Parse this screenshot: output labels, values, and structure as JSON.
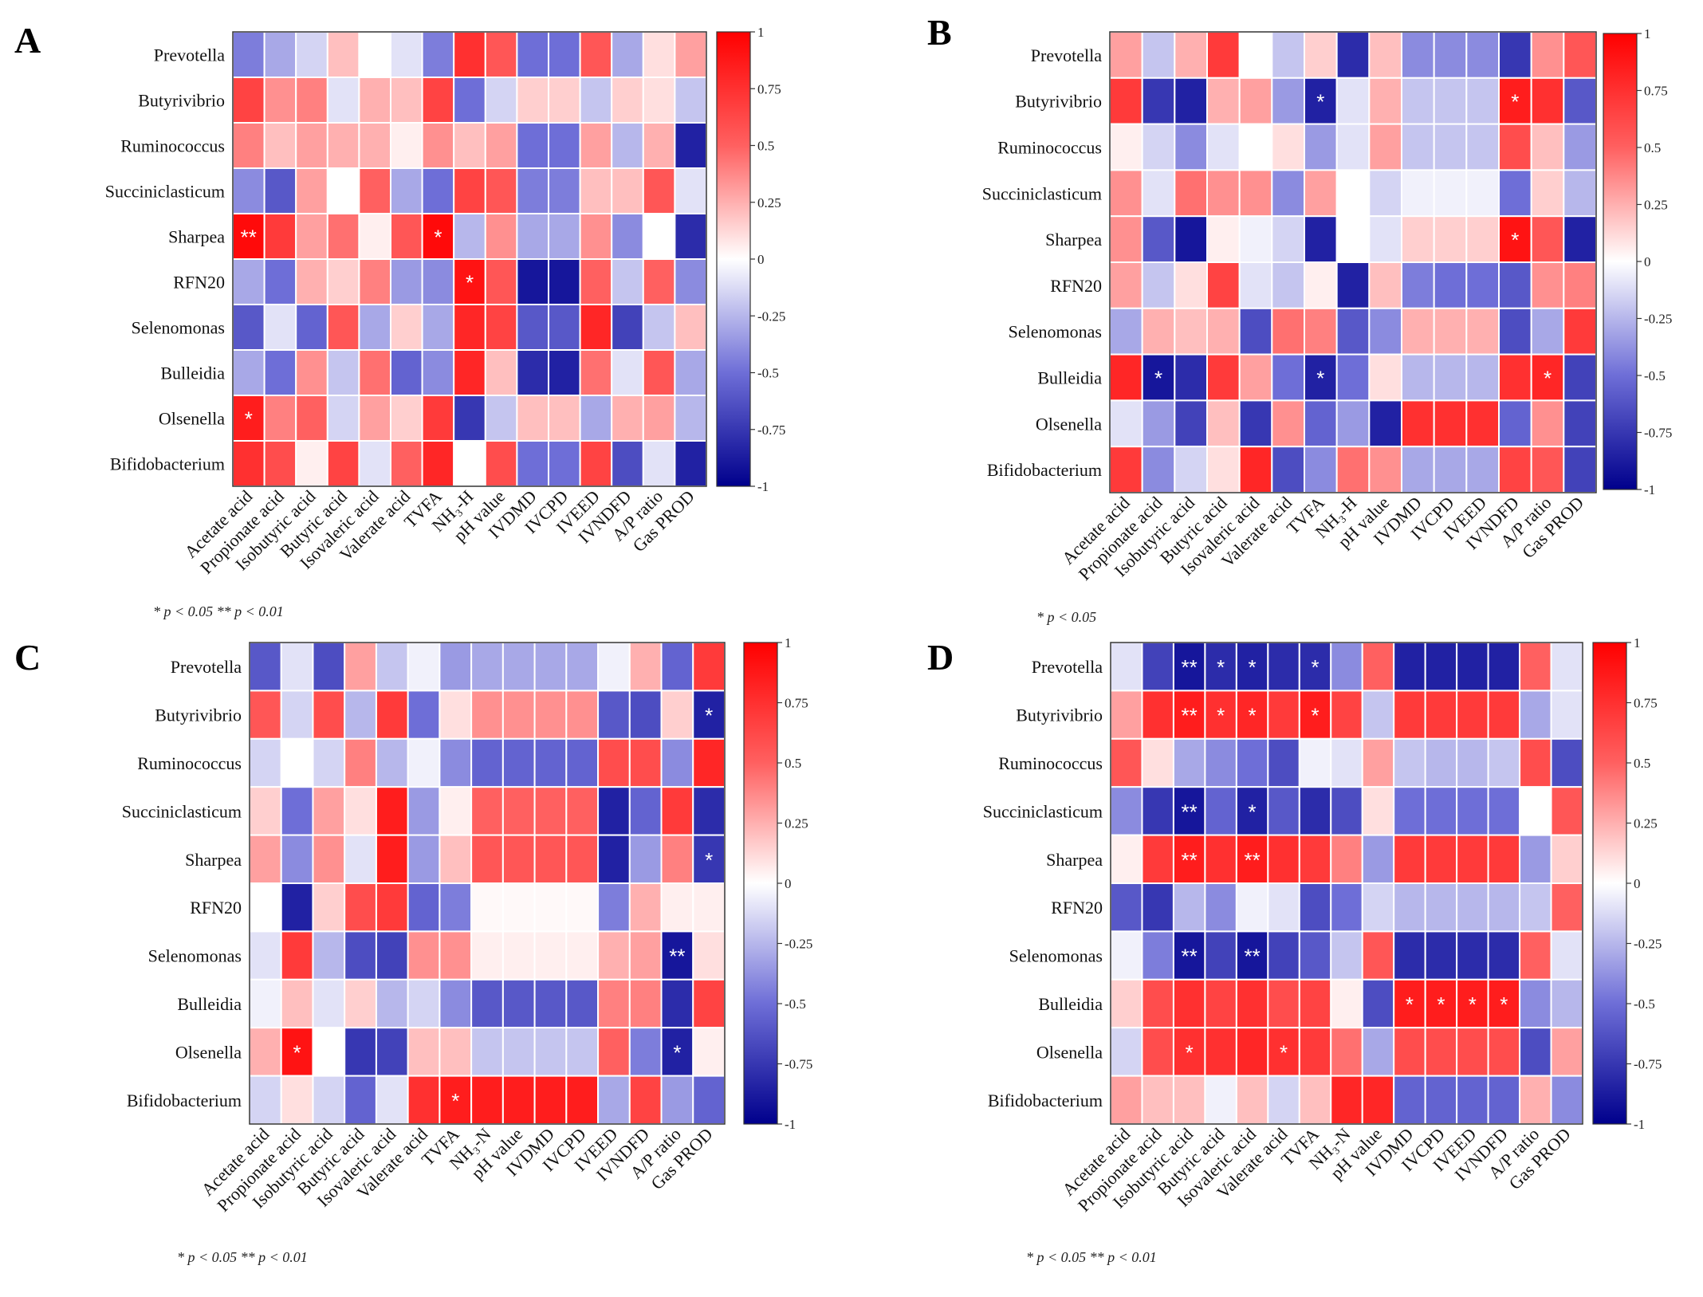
{
  "figure": {
    "genera": [
      "Prevotella",
      "Butyrivibrio",
      "Ruminococcus",
      "Succiniclasticum",
      "Sharpea",
      "RFN20",
      "Selenomonas",
      "Bulleidia",
      "Olsenella",
      "Bifidobacterium"
    ],
    "colorbar": {
      "ticks": [
        "1",
        "0.75",
        "0.5",
        "0.25",
        "0",
        "-0.25",
        "-0.5",
        "-0.75",
        "-1"
      ],
      "scale_colors": [
        "#00008b",
        "#ffffff",
        "#ff0000"
      ]
    }
  },
  "chart_data": [
    {
      "panel": "A",
      "type": "heatmap",
      "columns": [
        "Acetate acid",
        "Propionate acid",
        "Isobutyric acid",
        "Butyric acid",
        "Isovaleric acid",
        "Valerate acid",
        "TVFA",
        "NH₃-H",
        "pH value",
        "IVDMD",
        "IVCPD",
        "IVEED",
        "IVNDFD",
        "A/P ratio",
        "Gas PROD"
      ],
      "values": [
        [
          -0.45,
          -0.3,
          -0.15,
          0.2,
          0.0,
          -0.1,
          -0.45,
          0.75,
          0.55,
          -0.5,
          -0.5,
          0.55,
          -0.3,
          0.1,
          0.3
        ],
        [
          0.65,
          0.35,
          0.4,
          -0.1,
          0.25,
          0.2,
          0.65,
          -0.5,
          -0.15,
          0.15,
          0.15,
          -0.2,
          0.15,
          0.1,
          -0.2
        ],
        [
          0.4,
          0.2,
          0.3,
          0.25,
          0.25,
          0.05,
          0.35,
          0.2,
          0.3,
          -0.5,
          -0.5,
          0.3,
          -0.25,
          0.25,
          -0.85
        ],
        [
          -0.4,
          -0.6,
          0.3,
          0.0,
          0.5,
          -0.3,
          -0.5,
          0.65,
          0.55,
          -0.45,
          -0.45,
          0.2,
          0.2,
          0.55,
          -0.1
        ],
        [
          0.95,
          0.7,
          0.3,
          0.45,
          0.05,
          0.55,
          0.95,
          -0.25,
          0.35,
          -0.3,
          -0.3,
          0.35,
          -0.4,
          0.0,
          -0.8
        ],
        [
          -0.3,
          -0.5,
          0.25,
          0.15,
          0.4,
          -0.35,
          -0.4,
          0.9,
          0.55,
          -0.9,
          -0.9,
          0.5,
          -0.2,
          0.5,
          -0.4
        ],
        [
          -0.6,
          -0.1,
          -0.55,
          0.55,
          -0.3,
          0.15,
          -0.3,
          0.8,
          0.65,
          -0.6,
          -0.6,
          0.8,
          -0.7,
          -0.2,
          0.2
        ],
        [
          -0.3,
          -0.5,
          0.35,
          -0.2,
          0.45,
          -0.55,
          -0.4,
          0.8,
          0.2,
          -0.8,
          -0.85,
          0.45,
          -0.1,
          0.55,
          -0.3
        ],
        [
          0.85,
          0.4,
          0.5,
          -0.15,
          0.3,
          0.15,
          0.7,
          -0.75,
          -0.2,
          0.2,
          0.2,
          -0.3,
          0.25,
          0.3,
          -0.25
        ],
        [
          0.75,
          0.6,
          0.05,
          0.65,
          -0.1,
          0.5,
          0.8,
          0.0,
          0.6,
          -0.5,
          -0.5,
          0.65,
          -0.65,
          -0.1,
          -0.85
        ]
      ],
      "significance": [
        {
          "row": 4,
          "col": 0,
          "mark": "**"
        },
        {
          "row": 4,
          "col": 6,
          "mark": "*"
        },
        {
          "row": 5,
          "col": 7,
          "mark": "*"
        },
        {
          "row": 8,
          "col": 0,
          "mark": "*"
        }
      ],
      "footnote": "* p < 0.05  ** p < 0.01",
      "colorbar": [
        -1,
        1
      ]
    },
    {
      "panel": "B",
      "type": "heatmap",
      "columns": [
        "Acetate acid",
        "Propionate acid",
        "Isobutyric acid",
        "Butyric acid",
        "Isovaleric acid",
        "Valerate acid",
        "TVFA",
        "NH₃-H",
        "pH value",
        "IVDMD",
        "IVCPD",
        "IVEED",
        "IVNDFD",
        "A/P ratio",
        "Gas PROD"
      ],
      "values": [
        [
          0.3,
          -0.2,
          0.25,
          0.7,
          0.0,
          -0.2,
          0.15,
          -0.8,
          0.2,
          -0.4,
          -0.4,
          -0.4,
          -0.75,
          0.35,
          0.55
        ],
        [
          0.7,
          -0.75,
          -0.85,
          0.25,
          0.3,
          -0.35,
          -0.85,
          -0.1,
          0.25,
          -0.2,
          -0.2,
          -0.2,
          0.85,
          0.75,
          -0.6
        ],
        [
          0.05,
          -0.15,
          -0.4,
          -0.1,
          0.0,
          0.1,
          -0.35,
          -0.1,
          0.3,
          -0.2,
          -0.2,
          -0.2,
          0.6,
          0.2,
          -0.35
        ],
        [
          0.35,
          -0.1,
          0.45,
          0.35,
          0.35,
          -0.4,
          0.3,
          0.0,
          -0.15,
          -0.05,
          -0.05,
          -0.05,
          -0.5,
          0.15,
          -0.25
        ],
        [
          0.35,
          -0.6,
          -0.9,
          0.05,
          -0.05,
          -0.15,
          -0.85,
          0.0,
          -0.1,
          0.15,
          0.15,
          0.15,
          0.9,
          0.55,
          -0.85
        ],
        [
          0.3,
          -0.2,
          0.1,
          0.65,
          -0.1,
          -0.2,
          0.05,
          -0.85,
          0.2,
          -0.45,
          -0.5,
          -0.5,
          -0.6,
          0.35,
          0.4
        ],
        [
          -0.3,
          0.25,
          0.2,
          0.25,
          -0.65,
          0.45,
          0.4,
          -0.6,
          -0.4,
          0.25,
          0.25,
          0.25,
          -0.65,
          -0.3,
          0.7
        ],
        [
          0.8,
          -0.9,
          -0.8,
          0.7,
          0.3,
          -0.5,
          -0.85,
          -0.5,
          0.1,
          -0.25,
          -0.25,
          -0.25,
          0.75,
          0.8,
          -0.7
        ],
        [
          -0.1,
          -0.35,
          -0.7,
          0.2,
          -0.75,
          0.35,
          -0.55,
          -0.35,
          -0.85,
          0.75,
          0.75,
          0.75,
          -0.55,
          0.35,
          -0.7
        ],
        [
          0.7,
          -0.4,
          -0.15,
          0.1,
          0.8,
          -0.65,
          -0.4,
          0.45,
          0.35,
          -0.3,
          -0.3,
          -0.3,
          0.65,
          0.55,
          -0.7
        ]
      ],
      "significance": [
        {
          "row": 1,
          "col": 6,
          "mark": "*"
        },
        {
          "row": 1,
          "col": 12,
          "mark": "*"
        },
        {
          "row": 4,
          "col": 12,
          "mark": "*"
        },
        {
          "row": 7,
          "col": 1,
          "mark": "*"
        },
        {
          "row": 7,
          "col": 6,
          "mark": "*"
        },
        {
          "row": 7,
          "col": 13,
          "mark": "*"
        }
      ],
      "footnote": "* p < 0.05",
      "colorbar": [
        -1,
        1
      ]
    },
    {
      "panel": "C",
      "type": "heatmap",
      "columns": [
        "Acetate acid",
        "Propionate acid",
        "Isobutyric acid",
        "Butyric acid",
        "Isovaleric acid",
        "Valerate acid",
        "TVFA",
        "NH₃-N",
        "pH value",
        "IVDMD",
        "IVCPD",
        "IVEED",
        "IVNDFD",
        "A/P ratio",
        "Gas PROD"
      ],
      "values": [
        [
          -0.6,
          -0.1,
          -0.65,
          0.3,
          -0.2,
          -0.05,
          -0.35,
          -0.3,
          -0.3,
          -0.3,
          -0.3,
          -0.05,
          0.25,
          -0.55,
          0.7
        ],
        [
          0.55,
          -0.15,
          0.6,
          -0.25,
          0.7,
          -0.5,
          0.1,
          0.35,
          0.35,
          0.35,
          0.35,
          -0.6,
          -0.65,
          0.15,
          -0.85
        ],
        [
          -0.15,
          0.0,
          -0.15,
          0.4,
          -0.25,
          -0.05,
          -0.4,
          -0.55,
          -0.55,
          -0.55,
          -0.55,
          0.6,
          0.6,
          -0.4,
          0.8
        ],
        [
          0.15,
          -0.5,
          0.3,
          0.1,
          0.85,
          -0.35,
          0.05,
          0.5,
          0.5,
          0.5,
          0.5,
          -0.85,
          -0.55,
          0.7,
          -0.8
        ],
        [
          0.3,
          -0.4,
          0.35,
          -0.1,
          0.85,
          -0.35,
          0.2,
          0.55,
          0.55,
          0.55,
          0.55,
          -0.85,
          -0.35,
          0.4,
          -0.75
        ],
        [
          0.0,
          -0.85,
          0.15,
          0.6,
          0.7,
          -0.55,
          -0.45,
          0.02,
          0.02,
          0.02,
          0.02,
          -0.45,
          0.25,
          0.05,
          0.05
        ],
        [
          -0.1,
          0.7,
          -0.25,
          -0.65,
          -0.7,
          0.35,
          0.35,
          0.05,
          0.05,
          0.05,
          0.05,
          0.25,
          0.3,
          -0.9,
          0.1
        ],
        [
          -0.05,
          0.2,
          -0.1,
          0.15,
          -0.25,
          -0.15,
          -0.4,
          -0.6,
          -0.6,
          -0.6,
          -0.6,
          0.4,
          0.4,
          -0.8,
          0.65
        ],
        [
          0.25,
          0.9,
          0.0,
          -0.75,
          -0.7,
          0.2,
          0.2,
          -0.2,
          -0.2,
          -0.2,
          -0.2,
          0.5,
          -0.45,
          -0.85,
          0.05
        ],
        [
          -0.15,
          0.1,
          -0.15,
          -0.55,
          -0.1,
          0.75,
          0.85,
          0.85,
          0.85,
          0.85,
          0.85,
          -0.3,
          0.65,
          -0.35,
          -0.55
        ]
      ],
      "significance": [
        {
          "row": 1,
          "col": 14,
          "mark": "*"
        },
        {
          "row": 4,
          "col": 14,
          "mark": "*"
        },
        {
          "row": 6,
          "col": 13,
          "mark": "**"
        },
        {
          "row": 8,
          "col": 1,
          "mark": "*"
        },
        {
          "row": 8,
          "col": 13,
          "mark": "*"
        },
        {
          "row": 9,
          "col": 6,
          "mark": "*"
        }
      ],
      "footnote": "* p < 0.05  ** p < 0.01",
      "colorbar": [
        -1,
        1
      ]
    },
    {
      "panel": "D",
      "type": "heatmap",
      "columns": [
        "Acetate acid",
        "Propionate acid",
        "Isobutyric acid",
        "Butyric acid",
        "Isovaleric acid",
        "Valerate acid",
        "TVFA",
        "NH₃-N",
        "pH value",
        "IVDMD",
        "IVCPD",
        "IVEED",
        "IVNDFD",
        "A/P ratio",
        "Gas PROD"
      ],
      "values": [
        [
          -0.1,
          -0.7,
          -0.9,
          -0.8,
          -0.85,
          -0.8,
          -0.8,
          -0.4,
          0.5,
          -0.85,
          -0.85,
          -0.85,
          -0.85,
          0.5,
          -0.1
        ],
        [
          0.3,
          0.75,
          0.85,
          0.75,
          0.8,
          0.7,
          0.85,
          0.65,
          -0.2,
          0.7,
          0.7,
          0.7,
          0.7,
          -0.3,
          -0.1
        ],
        [
          0.55,
          0.1,
          -0.3,
          -0.4,
          -0.5,
          -0.65,
          -0.05,
          -0.1,
          0.3,
          -0.2,
          -0.25,
          -0.25,
          -0.2,
          0.6,
          -0.65
        ],
        [
          -0.4,
          -0.75,
          -0.9,
          -0.55,
          -0.85,
          -0.6,
          -0.8,
          -0.65,
          0.1,
          -0.5,
          -0.5,
          -0.5,
          -0.5,
          0.0,
          0.55
        ],
        [
          0.05,
          0.7,
          0.85,
          0.75,
          0.85,
          0.75,
          0.7,
          0.4,
          -0.35,
          0.7,
          0.7,
          0.7,
          0.7,
          -0.35,
          0.15
        ],
        [
          -0.6,
          -0.75,
          -0.25,
          -0.4,
          -0.05,
          -0.1,
          -0.65,
          -0.5,
          -0.15,
          -0.25,
          -0.25,
          -0.25,
          -0.25,
          -0.2,
          0.5
        ],
        [
          -0.05,
          -0.45,
          -0.9,
          -0.7,
          -0.9,
          -0.7,
          -0.6,
          -0.2,
          0.55,
          -0.8,
          -0.8,
          -0.8,
          -0.8,
          0.5,
          -0.1
        ],
        [
          0.15,
          0.6,
          0.75,
          0.65,
          0.75,
          0.6,
          0.65,
          0.05,
          -0.65,
          0.85,
          0.85,
          0.85,
          0.85,
          -0.4,
          -0.25
        ],
        [
          -0.15,
          0.6,
          0.75,
          0.75,
          0.8,
          0.75,
          0.7,
          0.45,
          -0.3,
          0.6,
          0.6,
          0.6,
          0.6,
          -0.65,
          0.3
        ],
        [
          0.3,
          0.2,
          0.2,
          -0.05,
          0.2,
          -0.15,
          0.2,
          0.8,
          0.8,
          -0.55,
          -0.55,
          -0.55,
          -0.55,
          0.25,
          -0.4
        ]
      ],
      "significance": [
        {
          "row": 0,
          "col": 2,
          "mark": "**"
        },
        {
          "row": 0,
          "col": 3,
          "mark": "*"
        },
        {
          "row": 0,
          "col": 4,
          "mark": "*"
        },
        {
          "row": 0,
          "col": 6,
          "mark": "*"
        },
        {
          "row": 1,
          "col": 2,
          "mark": "**"
        },
        {
          "row": 1,
          "col": 3,
          "mark": "*"
        },
        {
          "row": 1,
          "col": 4,
          "mark": "*"
        },
        {
          "row": 1,
          "col": 6,
          "mark": "*"
        },
        {
          "row": 3,
          "col": 2,
          "mark": "**"
        },
        {
          "row": 3,
          "col": 4,
          "mark": "*"
        },
        {
          "row": 4,
          "col": 2,
          "mark": "**"
        },
        {
          "row": 4,
          "col": 4,
          "mark": "**"
        },
        {
          "row": 6,
          "col": 2,
          "mark": "**"
        },
        {
          "row": 6,
          "col": 4,
          "mark": "**"
        },
        {
          "row": 7,
          "col": 9,
          "mark": "*"
        },
        {
          "row": 7,
          "col": 10,
          "mark": "*"
        },
        {
          "row": 7,
          "col": 11,
          "mark": "*"
        },
        {
          "row": 7,
          "col": 12,
          "mark": "*"
        },
        {
          "row": 8,
          "col": 2,
          "mark": "*"
        },
        {
          "row": 8,
          "col": 5,
          "mark": "*"
        }
      ],
      "footnote": "* p < 0.05  ** p < 0.01",
      "colorbar": [
        -1,
        1
      ]
    }
  ]
}
